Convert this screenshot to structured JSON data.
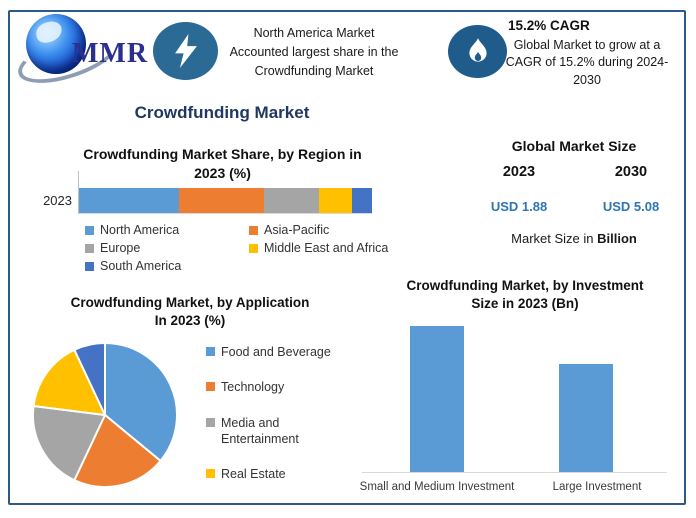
{
  "colors": {
    "frame_border": "#2d5986",
    "accent_navy": "#1f3864",
    "usd_value_blue": "#2e75b6",
    "badge_lightning_bg": "#2a6a94",
    "badge_flame_bg": "#1f5c8b",
    "bar_blue": "#5b9bd5"
  },
  "icons": {
    "logo": "globe-logo",
    "highlight_badge": "lightning-bolt-icon",
    "cagr_badge": "flame-icon"
  },
  "header": {
    "logo_text": "MMR",
    "highlight": {
      "lines": [
        "North America Market",
        "Accounted largest share in the",
        "Crowdfunding Market"
      ]
    },
    "cagr": {
      "title": "15.2% CAGR",
      "lines": [
        "Global Market to grow at a",
        "CAGR of 15.2% during 2024-",
        "2030"
      ]
    }
  },
  "page_title": "Crowdfunding Market",
  "global_market_size": {
    "title": "Global Market Size",
    "years": [
      "2023",
      "2030"
    ],
    "values": [
      "USD 1.88",
      "USD 5.08"
    ],
    "note_prefix": "Market Size in ",
    "note_bold": "Billion"
  },
  "chart_data": [
    {
      "id": "region-share",
      "type": "bar",
      "subtype": "stacked-horizontal",
      "title_lines": [
        "Crowdfunding Market Share, by Region in",
        "2023 (%)"
      ],
      "title": "Crowdfunding Market Share, by Region in 2023 (%)",
      "categories": [
        "2023"
      ],
      "unit": "%",
      "xlim": [
        0,
        100
      ],
      "series": [
        {
          "name": "North America",
          "value": 34,
          "color": "#5b9bd5"
        },
        {
          "name": "Asia-Pacific",
          "value": 29,
          "color": "#ed7d31"
        },
        {
          "name": "Europe",
          "value": 19,
          "color": "#a5a5a5"
        },
        {
          "name": "Middle East and Africa",
          "value": 11,
          "color": "#ffc000"
        },
        {
          "name": "South America",
          "value": 7,
          "color": "#4472c4"
        }
      ],
      "legend_position": "bottom-two-columns"
    },
    {
      "id": "application-share",
      "type": "pie",
      "title_lines": [
        "Crowdfunding Market, by Application",
        "In 2023 (%)"
      ],
      "title": "Crowdfunding Market, by Application In 2023 (%)",
      "unit": "%",
      "start_angle_deg": 0,
      "direction": "clockwise",
      "slices": [
        {
          "label": "Food and Beverage",
          "value": 36,
          "color": "#5b9bd5",
          "in_legend": true
        },
        {
          "label": "Technology",
          "value": 21,
          "color": "#ed7d31",
          "in_legend": true
        },
        {
          "label": "Media and Entertainment",
          "value": 20,
          "color": "#a5a5a5",
          "in_legend": true
        },
        {
          "label": "Real Estate",
          "value": 16,
          "color": "#ffc000",
          "in_legend": true
        },
        {
          "label": "",
          "value": 7,
          "color": "#4472c4",
          "in_legend": false
        }
      ],
      "legend_position": "right"
    },
    {
      "id": "investment-size",
      "type": "bar",
      "subtype": "vertical",
      "title_lines": [
        "Crowdfunding Market, by Investment",
        "Size in 2023 (Bn)"
      ],
      "title": "Crowdfunding Market, by Investment Size in 2023 (Bn)",
      "categories": [
        "Small and Medium Investment",
        "Large Investment"
      ],
      "values": [
        1.08,
        0.8
      ],
      "ylim": [
        0,
        1.1
      ],
      "unit": "Bn",
      "bar_color": "#5b9bd5",
      "grid": false
    }
  ]
}
